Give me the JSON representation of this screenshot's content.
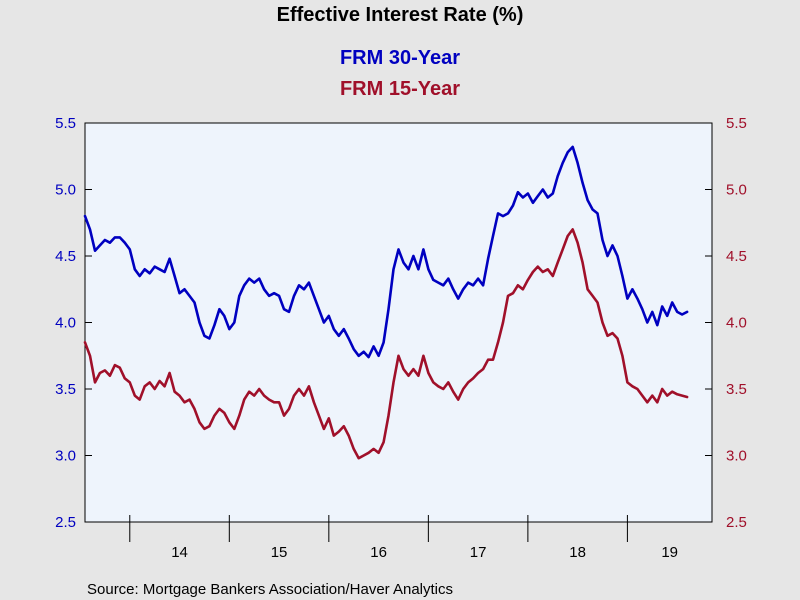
{
  "chart_data": {
    "type": "line",
    "title": "Effective Interest Rate (%)",
    "source": "Source:  Mortgage Bankers Association/Haver Analytics",
    "x_tick_labels": [
      "14",
      "15",
      "16",
      "17",
      "18",
      "19"
    ],
    "xlim": [
      2013.55,
      2019.85
    ],
    "ylim": [
      2.5,
      5.5
    ],
    "y_ticks": [
      2.5,
      3.0,
      3.5,
      4.0,
      4.5,
      5.0,
      5.5
    ],
    "y_tick_labels": [
      "2.5",
      "3.0",
      "3.5",
      "4.0",
      "4.5",
      "5.0",
      "5.5"
    ],
    "grid": false,
    "colors": {
      "series_1": "#0000c0",
      "series_2": "#a0102a",
      "plot_bg": "#eef4fc",
      "page_bg": "#e6e6e6"
    },
    "series": [
      {
        "name": "FRM 30-Year",
        "points": [
          [
            2013.55,
            4.8
          ],
          [
            2013.6,
            4.7
          ],
          [
            2013.65,
            4.54
          ],
          [
            2013.7,
            4.58
          ],
          [
            2013.75,
            4.62
          ],
          [
            2013.8,
            4.6
          ],
          [
            2013.85,
            4.64
          ],
          [
            2013.9,
            4.64
          ],
          [
            2013.95,
            4.6
          ],
          [
            2014.0,
            4.55
          ],
          [
            2014.05,
            4.4
          ],
          [
            2014.1,
            4.35
          ],
          [
            2014.15,
            4.4
          ],
          [
            2014.2,
            4.37
          ],
          [
            2014.25,
            4.42
          ],
          [
            2014.3,
            4.4
          ],
          [
            2014.35,
            4.38
          ],
          [
            2014.4,
            4.48
          ],
          [
            2014.45,
            4.35
          ],
          [
            2014.5,
            4.22
          ],
          [
            2014.55,
            4.25
          ],
          [
            2014.6,
            4.2
          ],
          [
            2014.65,
            4.15
          ],
          [
            2014.7,
            4.0
          ],
          [
            2014.75,
            3.9
          ],
          [
            2014.8,
            3.88
          ],
          [
            2014.85,
            3.98
          ],
          [
            2014.9,
            4.1
          ],
          [
            2014.95,
            4.05
          ],
          [
            2015.0,
            3.95
          ],
          [
            2015.05,
            4.0
          ],
          [
            2015.1,
            4.2
          ],
          [
            2015.15,
            4.28
          ],
          [
            2015.2,
            4.33
          ],
          [
            2015.25,
            4.3
          ],
          [
            2015.3,
            4.33
          ],
          [
            2015.35,
            4.25
          ],
          [
            2015.4,
            4.2
          ],
          [
            2015.45,
            4.22
          ],
          [
            2015.5,
            4.2
          ],
          [
            2015.55,
            4.1
          ],
          [
            2015.6,
            4.08
          ],
          [
            2015.65,
            4.2
          ],
          [
            2015.7,
            4.28
          ],
          [
            2015.75,
            4.25
          ],
          [
            2015.8,
            4.3
          ],
          [
            2015.85,
            4.2
          ],
          [
            2015.9,
            4.1
          ],
          [
            2015.95,
            4.0
          ],
          [
            2016.0,
            4.05
          ],
          [
            2016.05,
            3.95
          ],
          [
            2016.1,
            3.9
          ],
          [
            2016.15,
            3.95
          ],
          [
            2016.2,
            3.88
          ],
          [
            2016.25,
            3.8
          ],
          [
            2016.3,
            3.75
          ],
          [
            2016.35,
            3.78
          ],
          [
            2016.4,
            3.74
          ],
          [
            2016.45,
            3.82
          ],
          [
            2016.5,
            3.75
          ],
          [
            2016.55,
            3.85
          ],
          [
            2016.6,
            4.1
          ],
          [
            2016.65,
            4.4
          ],
          [
            2016.7,
            4.55
          ],
          [
            2016.75,
            4.45
          ],
          [
            2016.8,
            4.4
          ],
          [
            2016.85,
            4.5
          ],
          [
            2016.9,
            4.4
          ],
          [
            2016.95,
            4.55
          ],
          [
            2017.0,
            4.4
          ],
          [
            2017.05,
            4.32
          ],
          [
            2017.1,
            4.3
          ],
          [
            2017.15,
            4.28
          ],
          [
            2017.2,
            4.33
          ],
          [
            2017.25,
            4.25
          ],
          [
            2017.3,
            4.18
          ],
          [
            2017.35,
            4.25
          ],
          [
            2017.4,
            4.3
          ],
          [
            2017.45,
            4.28
          ],
          [
            2017.5,
            4.33
          ],
          [
            2017.55,
            4.28
          ],
          [
            2017.6,
            4.48
          ],
          [
            2017.65,
            4.65
          ],
          [
            2017.7,
            4.82
          ],
          [
            2017.75,
            4.8
          ],
          [
            2017.8,
            4.82
          ],
          [
            2017.85,
            4.88
          ],
          [
            2017.9,
            4.98
          ],
          [
            2017.95,
            4.94
          ],
          [
            2018.0,
            4.97
          ],
          [
            2018.05,
            4.9
          ],
          [
            2018.1,
            4.95
          ],
          [
            2018.15,
            5.0
          ],
          [
            2018.2,
            4.94
          ],
          [
            2018.25,
            4.97
          ],
          [
            2018.3,
            5.1
          ],
          [
            2018.35,
            5.2
          ],
          [
            2018.4,
            5.28
          ],
          [
            2018.45,
            5.32
          ],
          [
            2018.5,
            5.2
          ],
          [
            2018.55,
            5.05
          ],
          [
            2018.6,
            4.92
          ],
          [
            2018.65,
            4.85
          ],
          [
            2018.7,
            4.82
          ],
          [
            2018.75,
            4.62
          ],
          [
            2018.8,
            4.5
          ],
          [
            2018.85,
            4.58
          ],
          [
            2018.9,
            4.5
          ],
          [
            2018.95,
            4.35
          ],
          [
            2019.0,
            4.18
          ],
          [
            2019.05,
            4.25
          ],
          [
            2019.1,
            4.18
          ],
          [
            2019.15,
            4.1
          ],
          [
            2019.2,
            4.0
          ],
          [
            2019.25,
            4.08
          ],
          [
            2019.3,
            3.98
          ],
          [
            2019.35,
            4.12
          ],
          [
            2019.4,
            4.05
          ],
          [
            2019.45,
            4.15
          ],
          [
            2019.5,
            4.08
          ],
          [
            2019.55,
            4.06
          ],
          [
            2019.6,
            4.08
          ]
        ]
      },
      {
        "name": "FRM 15-Year",
        "points": [
          [
            2013.55,
            3.85
          ],
          [
            2013.6,
            3.75
          ],
          [
            2013.65,
            3.55
          ],
          [
            2013.7,
            3.62
          ],
          [
            2013.75,
            3.64
          ],
          [
            2013.8,
            3.6
          ],
          [
            2013.85,
            3.68
          ],
          [
            2013.9,
            3.66
          ],
          [
            2013.95,
            3.58
          ],
          [
            2014.0,
            3.55
          ],
          [
            2014.05,
            3.45
          ],
          [
            2014.1,
            3.42
          ],
          [
            2014.15,
            3.52
          ],
          [
            2014.2,
            3.55
          ],
          [
            2014.25,
            3.5
          ],
          [
            2014.3,
            3.56
          ],
          [
            2014.35,
            3.52
          ],
          [
            2014.4,
            3.62
          ],
          [
            2014.45,
            3.48
          ],
          [
            2014.5,
            3.45
          ],
          [
            2014.55,
            3.4
          ],
          [
            2014.6,
            3.42
          ],
          [
            2014.65,
            3.35
          ],
          [
            2014.7,
            3.25
          ],
          [
            2014.75,
            3.2
          ],
          [
            2014.8,
            3.22
          ],
          [
            2014.85,
            3.3
          ],
          [
            2014.9,
            3.35
          ],
          [
            2014.95,
            3.32
          ],
          [
            2015.0,
            3.25
          ],
          [
            2015.05,
            3.2
          ],
          [
            2015.1,
            3.3
          ],
          [
            2015.15,
            3.42
          ],
          [
            2015.2,
            3.48
          ],
          [
            2015.25,
            3.45
          ],
          [
            2015.3,
            3.5
          ],
          [
            2015.35,
            3.45
          ],
          [
            2015.4,
            3.42
          ],
          [
            2015.45,
            3.4
          ],
          [
            2015.5,
            3.4
          ],
          [
            2015.55,
            3.3
          ],
          [
            2015.6,
            3.35
          ],
          [
            2015.65,
            3.45
          ],
          [
            2015.7,
            3.5
          ],
          [
            2015.75,
            3.45
          ],
          [
            2015.8,
            3.52
          ],
          [
            2015.85,
            3.4
          ],
          [
            2015.9,
            3.3
          ],
          [
            2015.95,
            3.2
          ],
          [
            2016.0,
            3.28
          ],
          [
            2016.05,
            3.15
          ],
          [
            2016.1,
            3.18
          ],
          [
            2016.15,
            3.22
          ],
          [
            2016.2,
            3.15
          ],
          [
            2016.25,
            3.05
          ],
          [
            2016.3,
            2.98
          ],
          [
            2016.35,
            3.0
          ],
          [
            2016.4,
            3.02
          ],
          [
            2016.45,
            3.05
          ],
          [
            2016.5,
            3.02
          ],
          [
            2016.55,
            3.1
          ],
          [
            2016.6,
            3.3
          ],
          [
            2016.65,
            3.55
          ],
          [
            2016.7,
            3.75
          ],
          [
            2016.75,
            3.65
          ],
          [
            2016.8,
            3.6
          ],
          [
            2016.85,
            3.65
          ],
          [
            2016.9,
            3.6
          ],
          [
            2016.95,
            3.75
          ],
          [
            2017.0,
            3.62
          ],
          [
            2017.05,
            3.55
          ],
          [
            2017.1,
            3.52
          ],
          [
            2017.15,
            3.5
          ],
          [
            2017.2,
            3.55
          ],
          [
            2017.25,
            3.48
          ],
          [
            2017.3,
            3.42
          ],
          [
            2017.35,
            3.5
          ],
          [
            2017.4,
            3.55
          ],
          [
            2017.45,
            3.58
          ],
          [
            2017.5,
            3.62
          ],
          [
            2017.55,
            3.65
          ],
          [
            2017.6,
            3.72
          ],
          [
            2017.65,
            3.72
          ],
          [
            2017.7,
            3.85
          ],
          [
            2017.75,
            4.0
          ],
          [
            2017.8,
            4.2
          ],
          [
            2017.85,
            4.22
          ],
          [
            2017.9,
            4.28
          ],
          [
            2017.95,
            4.25
          ],
          [
            2018.0,
            4.32
          ],
          [
            2018.05,
            4.38
          ],
          [
            2018.1,
            4.42
          ],
          [
            2018.15,
            4.38
          ],
          [
            2018.2,
            4.4
          ],
          [
            2018.25,
            4.35
          ],
          [
            2018.3,
            4.45
          ],
          [
            2018.35,
            4.55
          ],
          [
            2018.4,
            4.65
          ],
          [
            2018.45,
            4.7
          ],
          [
            2018.5,
            4.6
          ],
          [
            2018.55,
            4.45
          ],
          [
            2018.6,
            4.25
          ],
          [
            2018.65,
            4.2
          ],
          [
            2018.7,
            4.15
          ],
          [
            2018.75,
            4.0
          ],
          [
            2018.8,
            3.9
          ],
          [
            2018.85,
            3.92
          ],
          [
            2018.9,
            3.88
          ],
          [
            2018.95,
            3.75
          ],
          [
            2019.0,
            3.55
          ],
          [
            2019.05,
            3.52
          ],
          [
            2019.1,
            3.5
          ],
          [
            2019.15,
            3.45
          ],
          [
            2019.2,
            3.4
          ],
          [
            2019.25,
            3.45
          ],
          [
            2019.3,
            3.4
          ],
          [
            2019.35,
            3.5
          ],
          [
            2019.4,
            3.45
          ],
          [
            2019.45,
            3.48
          ],
          [
            2019.5,
            3.46
          ],
          [
            2019.55,
            3.45
          ],
          [
            2019.6,
            3.44
          ]
        ]
      }
    ]
  }
}
